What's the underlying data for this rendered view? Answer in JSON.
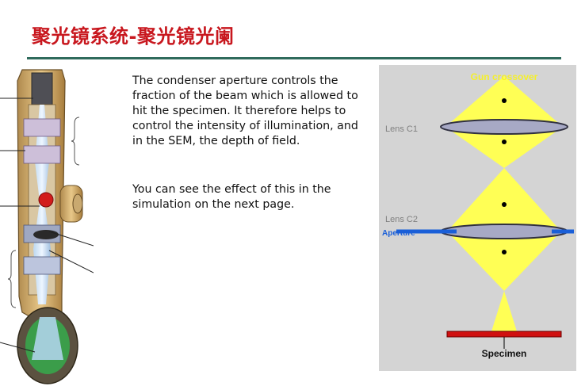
{
  "slide": {
    "title": "聚光镜系统-聚光镜光阑",
    "paragraphs": [
      "The condenser aperture controls the fraction of the beam which is allowed to hit the specimen. It therefore helps to control the intensity of illumination, and in the SEM, the depth of field.",
      "You can see the effect of this in the simulation on the next page."
    ]
  },
  "diagram": {
    "labels": {
      "gun_crossover": "Gun crossover",
      "lens_c1": "Lens C1",
      "lens_c2": "Lens C2",
      "aperture": "Aperture",
      "specimen": "Specimen"
    },
    "colors": {
      "background": "#d4d4d4",
      "beam": "#ffff55",
      "lens_fill": "#a7a9c5",
      "aperture": "#1a5fd8",
      "specimen": "#d01010",
      "crossover_label": "#f5f02a"
    }
  },
  "theme": {
    "title_color": "#c8171e",
    "rule_color": "#2f6b5c"
  }
}
